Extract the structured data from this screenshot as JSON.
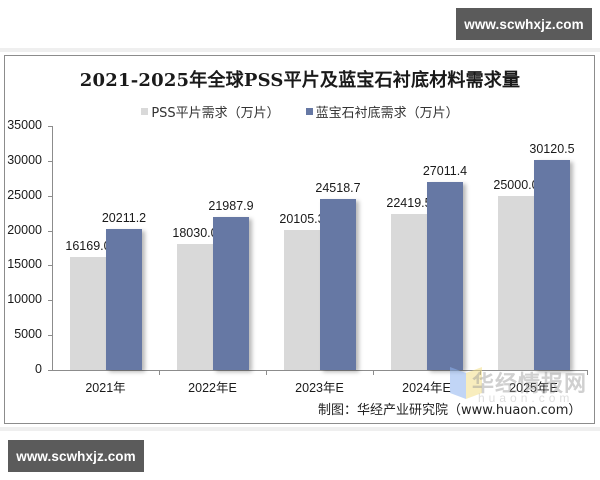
{
  "watermark_top": "www.scwhxjz.com",
  "watermark_bottom": "www.scwhxjz.com",
  "source_note": "制图：华经产业研究院（www.huaon.com）",
  "logo": {
    "text": "华经情报网",
    "url": "huaon.com"
  },
  "colors": {
    "pss": "#d9d9d9",
    "sapphire": "#6678a4",
    "axis": "#8c8c8c"
  },
  "chart_data": {
    "type": "bar",
    "title": "2021-2025年全球PSS平片及蓝宝石衬底材料需求量",
    "xlabel": "",
    "ylabel": "",
    "categories": [
      "2021年",
      "2022年E",
      "2023年E",
      "2024年E",
      "2025年E"
    ],
    "series": [
      {
        "name": "PSS平片需求（万片）",
        "color": "#d9d9d9",
        "values": [
          16169.0,
          18030.0,
          20105.3,
          22419.5,
          25000.0
        ],
        "labels": [
          "16169.0",
          "18030.0",
          "20105.3",
          "22419.5",
          "25000.0"
        ]
      },
      {
        "name": "蓝宝石衬底需求（万片）",
        "color": "#6678a4",
        "values": [
          20211.2,
          21987.9,
          24518.7,
          27011.4,
          30120.5
        ],
        "labels": [
          "20211.2",
          "21987.9",
          "24518.7",
          "27011.4",
          "30120.5"
        ]
      }
    ],
    "ylim": [
      0,
      35000
    ],
    "yticks": [
      "0",
      "5000",
      "10000",
      "15000",
      "20000",
      "25000",
      "30000",
      "35000"
    ],
    "grid": false,
    "legend_position": "top"
  }
}
